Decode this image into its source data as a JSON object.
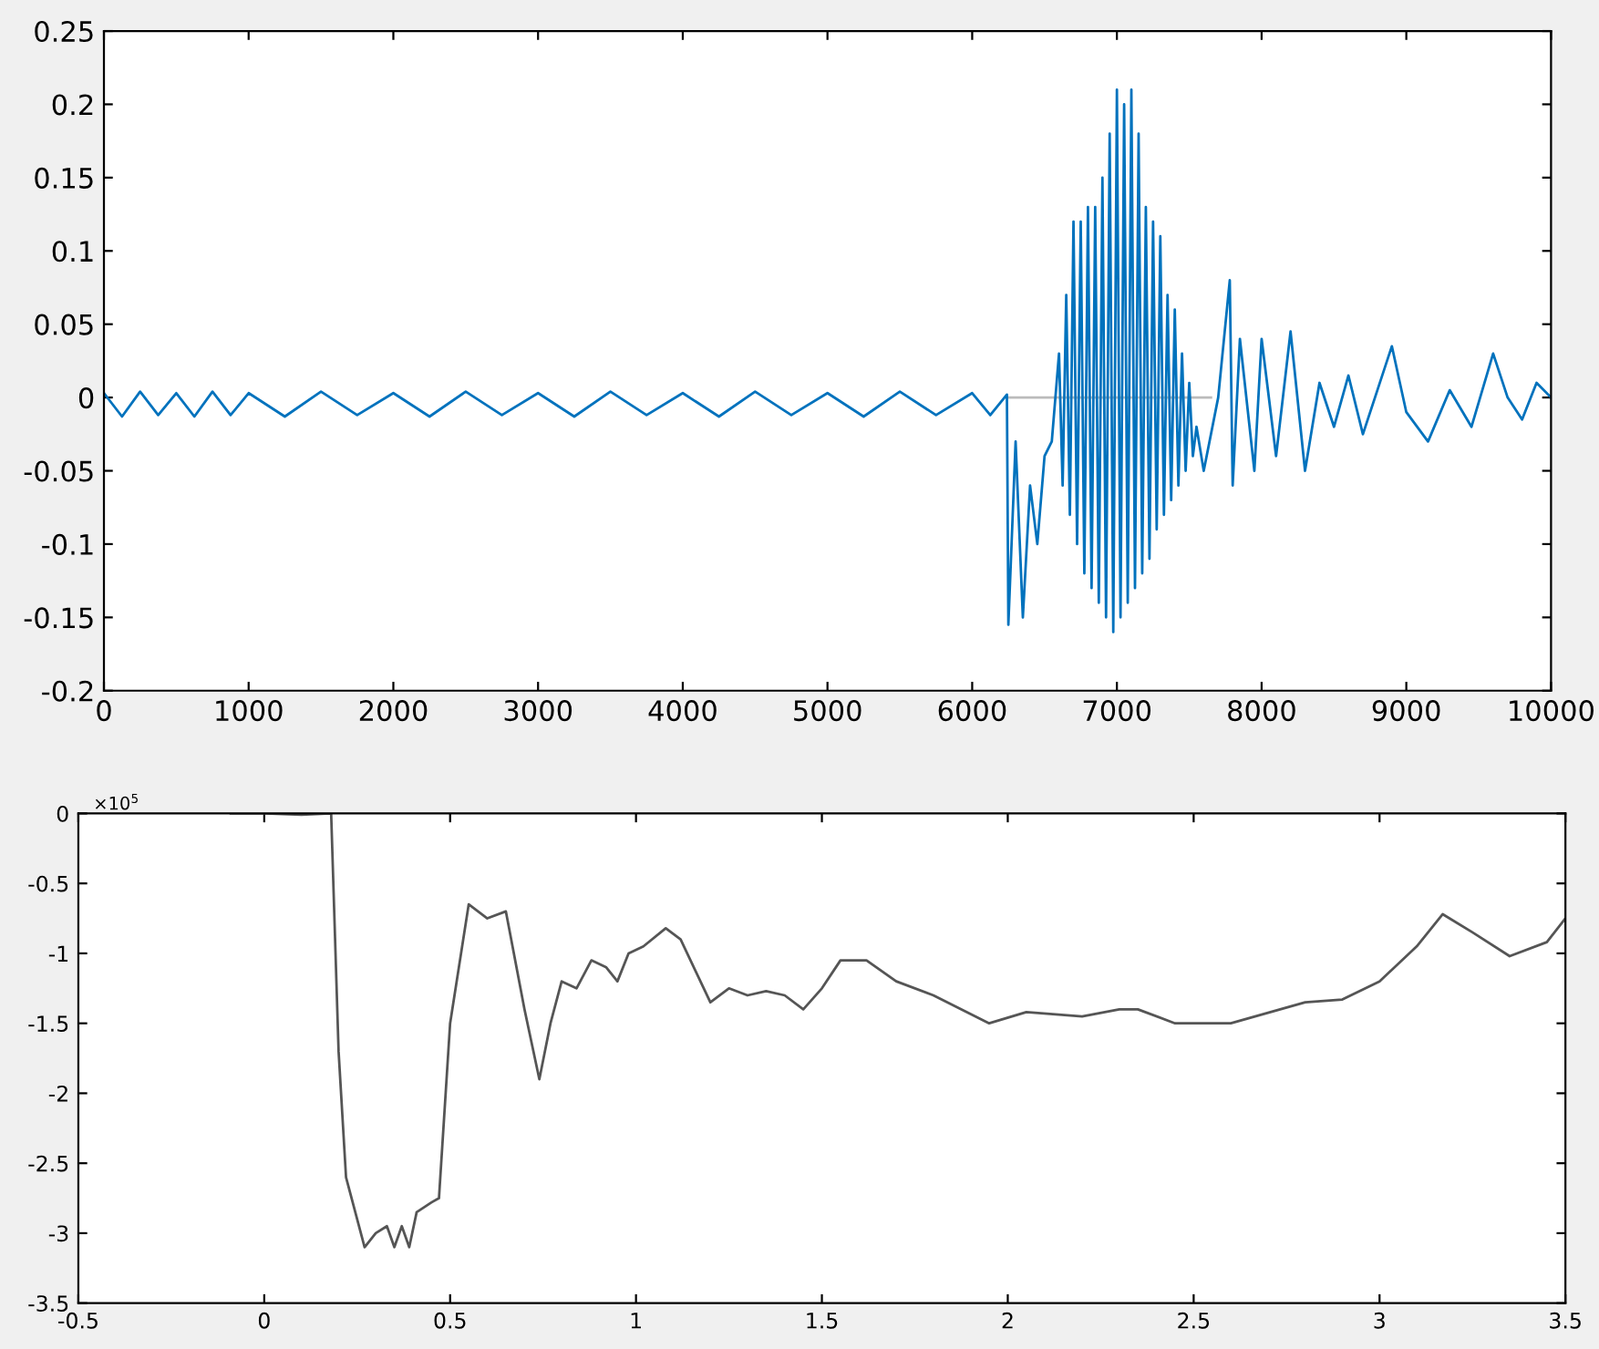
{
  "chart_data": [
    {
      "type": "line",
      "xlim": [
        0,
        10000
      ],
      "ylim": [
        -0.2,
        0.25
      ],
      "xticks": [
        0,
        1000,
        2000,
        3000,
        4000,
        5000,
        6000,
        7000,
        8000,
        9000,
        10000
      ],
      "yticks": [
        -0.2,
        -0.15,
        -0.1,
        -0.05,
        0,
        0.05,
        0.1,
        0.15,
        0.2,
        0.25
      ],
      "grid": false,
      "legend": false,
      "series": [
        {
          "color": "#bbbbbb",
          "x": [
            6250,
            7650
          ],
          "values": [
            0,
            0
          ]
        },
        {
          "color": "#0072bd",
          "x": [
            0,
            125,
            250,
            375,
            500,
            625,
            750,
            875,
            1000,
            1250,
            1500,
            1750,
            2000,
            2250,
            2500,
            2750,
            3000,
            3250,
            3500,
            3750,
            4000,
            4250,
            4500,
            4750,
            5000,
            5250,
            5500,
            5750,
            6000,
            6125,
            6240,
            6250,
            6300,
            6350,
            6400,
            6450,
            6500,
            6550,
            6600,
            6625,
            6650,
            6675,
            6700,
            6725,
            6750,
            6775,
            6800,
            6825,
            6850,
            6875,
            6900,
            6925,
            6950,
            6975,
            7000,
            7025,
            7050,
            7075,
            7100,
            7125,
            7150,
            7175,
            7200,
            7225,
            7250,
            7275,
            7300,
            7325,
            7350,
            7375,
            7400,
            7425,
            7450,
            7475,
            7500,
            7525,
            7550,
            7600,
            7700,
            7780,
            7800,
            7850,
            7950,
            8000,
            8100,
            8200,
            8300,
            8400,
            8500,
            8600,
            8700,
            8800,
            8900,
            9000,
            9150,
            9300,
            9450,
            9600,
            9700,
            9800,
            9900,
            10000
          ],
          "values": [
            0.003,
            -0.013,
            0.004,
            -0.012,
            0.003,
            -0.013,
            0.004,
            -0.012,
            0.003,
            -0.013,
            0.004,
            -0.012,
            0.003,
            -0.013,
            0.004,
            -0.012,
            0.003,
            -0.013,
            0.004,
            -0.012,
            0.003,
            -0.013,
            0.004,
            -0.012,
            0.003,
            -0.013,
            0.004,
            -0.012,
            0.003,
            -0.012,
            0.002,
            -0.155,
            -0.03,
            -0.15,
            -0.06,
            -0.1,
            -0.04,
            -0.03,
            0.03,
            -0.06,
            0.07,
            -0.08,
            0.12,
            -0.1,
            0.12,
            -0.12,
            0.13,
            -0.13,
            0.13,
            -0.14,
            0.15,
            -0.15,
            0.18,
            -0.16,
            0.21,
            -0.15,
            0.2,
            -0.14,
            0.21,
            -0.13,
            0.18,
            -0.12,
            0.13,
            -0.11,
            0.12,
            -0.09,
            0.11,
            -0.08,
            0.07,
            -0.07,
            0.06,
            -0.06,
            0.03,
            -0.05,
            0.01,
            -0.04,
            -0.02,
            -0.05,
            0.0,
            0.08,
            -0.06,
            0.04,
            -0.05,
            0.04,
            -0.04,
            0.045,
            -0.05,
            0.01,
            -0.02,
            0.015,
            -0.025,
            0.005,
            0.035,
            -0.01,
            -0.03,
            0.005,
            -0.02,
            0.03,
            0.0,
            -0.015,
            0.01,
            0.0
          ]
        }
      ]
    },
    {
      "type": "line",
      "xlim": [
        -0.5,
        3.5
      ],
      "ylim": [
        -3.5,
        0
      ],
      "xticks": [
        -0.5,
        0,
        0.5,
        1,
        1.5,
        2,
        2.5,
        3,
        3.5
      ],
      "yticks": [
        -3.5,
        -3,
        -2.5,
        -2,
        -1.5,
        -1,
        -0.5,
        0
      ],
      "grid": false,
      "legend": false,
      "annotations": [
        "×10$^{5}$"
      ],
      "series": [
        {
          "color": "#555555",
          "x": [
            -0.09,
            0.0,
            0.1,
            0.18,
            0.2,
            0.22,
            0.27,
            0.3,
            0.33,
            0.35,
            0.37,
            0.39,
            0.41,
            0.45,
            0.47,
            0.5,
            0.55,
            0.6,
            0.65,
            0.7,
            0.74,
            0.77,
            0.8,
            0.84,
            0.88,
            0.92,
            0.95,
            0.98,
            1.02,
            1.08,
            1.12,
            1.2,
            1.25,
            1.3,
            1.35,
            1.4,
            1.45,
            1.5,
            1.55,
            1.62,
            1.7,
            1.8,
            1.95,
            2.05,
            2.2,
            2.3,
            2.35,
            2.45,
            2.6,
            2.8,
            2.9,
            3.0,
            3.1,
            3.17,
            3.25,
            3.35,
            3.45,
            3.5
          ],
          "values": [
            0,
            0,
            -0.01,
            0,
            -1.7,
            -2.6,
            -3.1,
            -3.0,
            -2.95,
            -3.1,
            -2.95,
            -3.1,
            -2.85,
            -2.78,
            -2.75,
            -1.5,
            -0.65,
            -0.75,
            -0.7,
            -1.4,
            -1.9,
            -1.5,
            -1.2,
            -1.25,
            -1.05,
            -1.1,
            -1.2,
            -1.0,
            -0.95,
            -0.82,
            -0.9,
            -1.35,
            -1.25,
            -1.3,
            -1.27,
            -1.3,
            -1.4,
            -1.25,
            -1.05,
            -1.05,
            -1.2,
            -1.3,
            -1.5,
            -1.42,
            -1.45,
            -1.4,
            -1.4,
            -1.5,
            -1.5,
            -1.35,
            -1.33,
            -1.2,
            -0.95,
            -0.72,
            -0.85,
            -1.02,
            -0.92,
            -0.75
          ]
        }
      ]
    }
  ]
}
